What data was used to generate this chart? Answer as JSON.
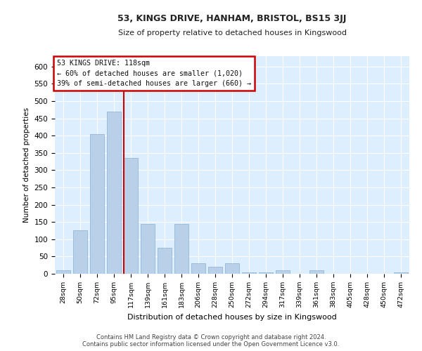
{
  "title1": "53, KINGS DRIVE, HANHAM, BRISTOL, BS15 3JJ",
  "title2": "Size of property relative to detached houses in Kingswood",
  "xlabel": "Distribution of detached houses by size in Kingswood",
  "ylabel": "Number of detached properties",
  "bar_color": "#b8d0e8",
  "bar_edge_color": "#8ab0d0",
  "plot_bg_color": "#ddeeff",
  "grid_color": "#ffffff",
  "annotation_line_color": "#cc0000",
  "annotation_box_color": "#cc0000",
  "categories": [
    "28sqm",
    "50sqm",
    "72sqm",
    "95sqm",
    "117sqm",
    "139sqm",
    "161sqm",
    "183sqm",
    "206sqm",
    "228sqm",
    "250sqm",
    "272sqm",
    "294sqm",
    "317sqm",
    "339sqm",
    "361sqm",
    "383sqm",
    "405sqm",
    "428sqm",
    "450sqm",
    "472sqm"
  ],
  "values": [
    10,
    125,
    405,
    470,
    335,
    145,
    75,
    145,
    30,
    20,
    30,
    5,
    5,
    10,
    0,
    10,
    0,
    0,
    0,
    0,
    5
  ],
  "ylim": [
    0,
    630
  ],
  "yticks": [
    0,
    50,
    100,
    150,
    200,
    250,
    300,
    350,
    400,
    450,
    500,
    550,
    600
  ],
  "property_bin_index": 4,
  "annotation_text": "53 KINGS DRIVE: 118sqm\n← 60% of detached houses are smaller (1,020)\n39% of semi-detached houses are larger (660) →",
  "footer1": "Contains HM Land Registry data © Crown copyright and database right 2024.",
  "footer2": "Contains public sector information licensed under the Open Government Licence v3.0."
}
